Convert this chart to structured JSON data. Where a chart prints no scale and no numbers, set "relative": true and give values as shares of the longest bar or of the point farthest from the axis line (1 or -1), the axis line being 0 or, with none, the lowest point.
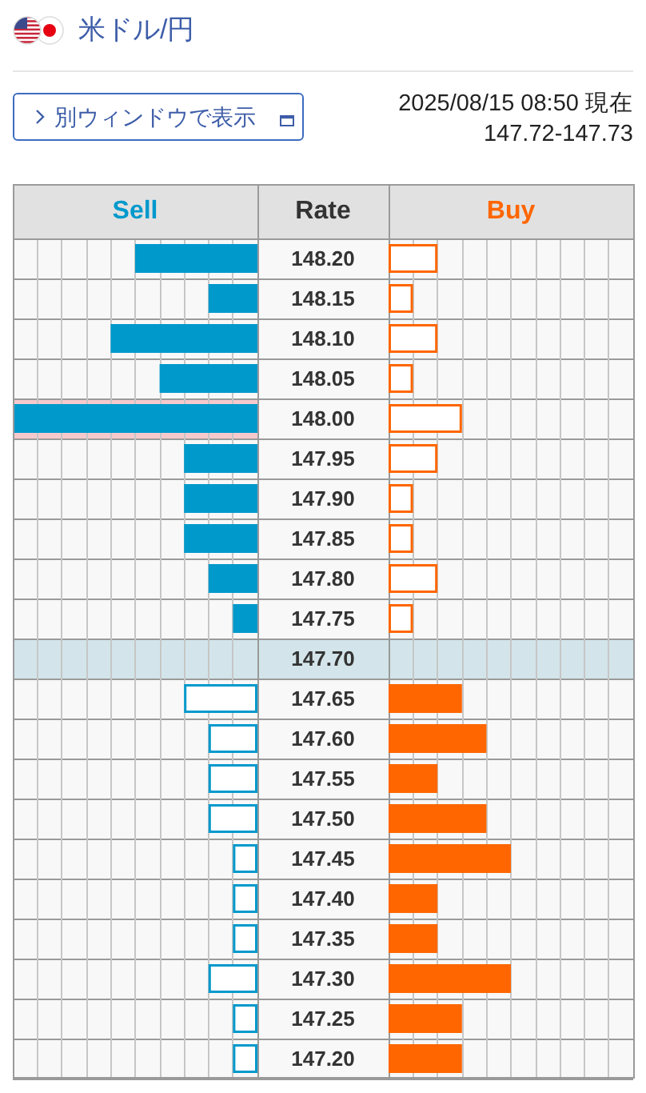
{
  "chart_data": [
    {
      "type": "bar",
      "title": "米ドル/円",
      "annotations": [
        "別ウィンドウで表示"
      ],
      "orientation": "horizontal",
      "relative": true,
      "grid": true,
      "tick_labels": false,
      "categories": [
        "148.20",
        "148.15",
        "148.10",
        "148.05",
        "148.00",
        "147.95",
        "147.90",
        "147.85",
        "147.80",
        "147.75",
        "147.70",
        "147.65",
        "147.60",
        "147.55",
        "147.50",
        "147.45",
        "147.40",
        "147.35",
        "147.30",
        "147.25",
        "147.20"
      ],
      "series": [
        {
          "name": "Sell",
          "color": "#0099cc",
          "values": [
            0.5,
            0.2,
            0.6,
            0.4,
            1,
            0.3,
            0.3,
            0.3,
            0.2,
            0.1,
            null,
            0.3,
            0.2,
            0.2,
            0.2,
            0.1,
            0.1,
            0.1,
            0.2,
            0.1,
            0.1
          ],
          "colors": [
            "#0099cc",
            "#0099cc",
            "#0099cc",
            "#0099cc",
            "#0099cc",
            "#0099cc",
            "#0099cc",
            "#0099cc",
            "#0099cc",
            "#0099cc",
            null,
            "#ffffff",
            "#ffffff",
            "#ffffff",
            "#ffffff",
            "#ffffff",
            "#ffffff",
            "#ffffff",
            "#ffffff",
            "#ffffff",
            "#ffffff"
          ]
        }
      ],
      "bands": [
        {
          "axis": "y",
          "from": "148.00",
          "to": "148.00",
          "color": "#f6cacd"
        },
        {
          "axis": "y",
          "from": "147.70",
          "to": "147.70",
          "color": "#d3e5ea"
        }
      ]
    },
    {
      "type": "bar",
      "subtitle": "2025/08/15 08:50 現在",
      "annotations": [
        "147.72-147.73"
      ],
      "ylabel": "Rate",
      "orientation": "horizontal",
      "relative": true,
      "grid": true,
      "tick_labels": "y",
      "categories": [
        "148.20",
        "148.15",
        "148.10",
        "148.05",
        "148.00",
        "147.95",
        "147.90",
        "147.85",
        "147.80",
        "147.75",
        "147.70",
        "147.65",
        "147.60",
        "147.55",
        "147.50",
        "147.45",
        "147.40",
        "147.35",
        "147.30",
        "147.25",
        "147.20"
      ],
      "series": [
        {
          "name": "Buy",
          "color": "#ff6600",
          "values": [
            0.4,
            0.2,
            0.4,
            0.2,
            0.6,
            0.4,
            0.2,
            0.2,
            0.4,
            0.2,
            null,
            0.6,
            0.8,
            0.4,
            0.8,
            1,
            0.4,
            0.4,
            1,
            0.6,
            0.6
          ],
          "colors": [
            "#ffffff",
            "#ffffff",
            "#ffffff",
            "#ffffff",
            "#ffffff",
            "#ffffff",
            "#ffffff",
            "#ffffff",
            "#ffffff",
            "#ffffff",
            null,
            "#ff6600",
            "#ff6600",
            "#ff6600",
            "#ff6600",
            "#ff6600",
            "#ff6600",
            "#ff6600",
            "#ff6600",
            "#ff6600",
            "#ff6600"
          ]
        }
      ],
      "bands": [
        {
          "axis": "y",
          "from": "147.70",
          "to": "147.70",
          "color": "#d3e5ea"
        }
      ]
    }
  ]
}
